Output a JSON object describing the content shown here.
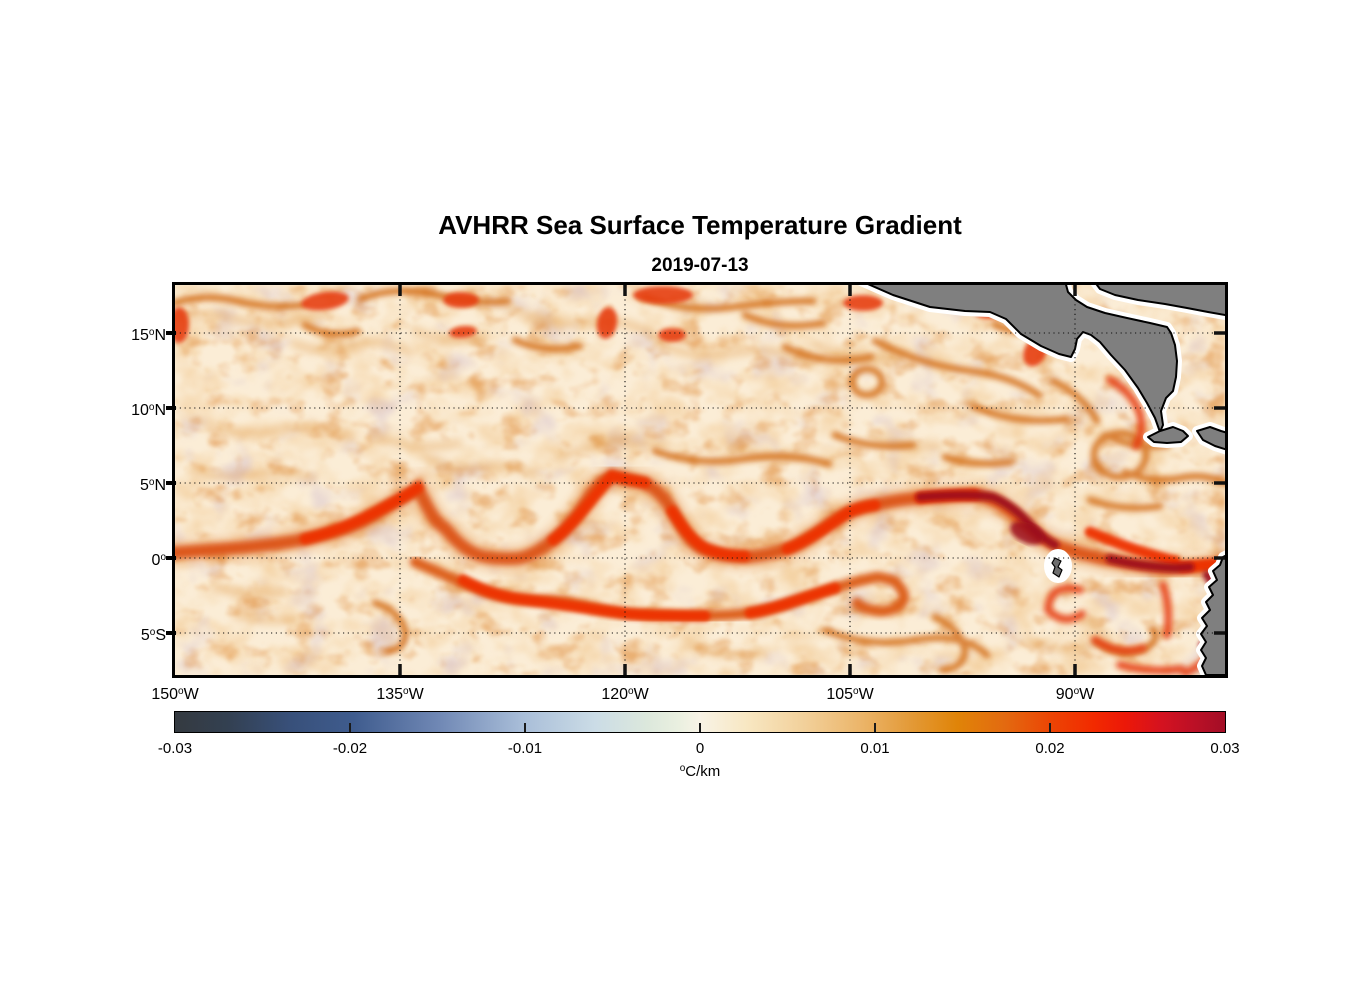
{
  "title": "AVHRR Sea Surface Temperature Gradient",
  "subtitle": "2019-07-13",
  "chart_data": {
    "type": "heatmap",
    "title": "AVHRR Sea Surface Temperature Gradient",
    "date": "2019-07-13",
    "x_axis": {
      "label": "",
      "tick_values_deg_west": [
        150,
        135,
        120,
        105,
        90
      ],
      "gridline_values_deg_west": [
        135,
        120,
        105,
        90
      ],
      "range_deg_west": [
        150,
        80
      ],
      "suffix": "W"
    },
    "y_axis": {
      "label": "",
      "tick_values_deg_north": [
        15,
        10,
        5,
        0,
        -5
      ],
      "range_deg_north": [
        18.2,
        -7.8
      ],
      "suffix_north": "N",
      "suffix_south": "S"
    },
    "grid": "dotted",
    "colorbar": {
      "min": -0.03,
      "max": 0.03,
      "tick_values": [
        -0.03,
        -0.02,
        -0.01,
        0,
        0.01,
        0.02,
        0.03
      ],
      "tick_labels": [
        "-0.03",
        "-0.02",
        "-0.01",
        "0",
        "0.01",
        "0.02",
        "0.03"
      ],
      "unit": "°C/km",
      "unit_parts": {
        "sup": "o",
        "text": "C/km"
      },
      "orientation": "horizontal",
      "stops": [
        {
          "pos": 0.0,
          "color": "#343A40"
        },
        {
          "pos": 0.05,
          "color": "#334051"
        },
        {
          "pos": 0.11,
          "color": "#38507A"
        },
        {
          "pos": 0.17,
          "color": "#3F5C8E"
        },
        {
          "pos": 0.25,
          "color": "#6F87B4"
        },
        {
          "pos": 0.33,
          "color": "#A8BDD8"
        },
        {
          "pos": 0.4,
          "color": "#CBDCE6"
        },
        {
          "pos": 0.45,
          "color": "#DCE8DC"
        },
        {
          "pos": 0.48,
          "color": "#EAF0E0"
        },
        {
          "pos": 0.5,
          "color": "#F8F3E6"
        },
        {
          "pos": 0.545,
          "color": "#F8E7C2"
        },
        {
          "pos": 0.6,
          "color": "#F2D09A"
        },
        {
          "pos": 0.655,
          "color": "#EBB468"
        },
        {
          "pos": 0.7,
          "color": "#E39A38"
        },
        {
          "pos": 0.745,
          "color": "#E08408"
        },
        {
          "pos": 0.79,
          "color": "#E36A10"
        },
        {
          "pos": 0.835,
          "color": "#EC4404"
        },
        {
          "pos": 0.875,
          "color": "#F22A00"
        },
        {
          "pos": 0.905,
          "color": "#EC1808"
        },
        {
          "pos": 0.94,
          "color": "#D41220"
        },
        {
          "pos": 0.97,
          "color": "#BC1026"
        },
        {
          "pos": 1.0,
          "color": "#A30E26"
        }
      ]
    },
    "colors": {
      "ocean_background": "#FBEDD6",
      "land": "#7F7F7F",
      "coastline": "#000000",
      "coast_buffer": "#FFFFFF",
      "front_strong": "#EE3206",
      "front_core_dark": "#9C0E1E",
      "filament_orange": "#D4701C"
    },
    "features": [
      {
        "name": "tropical-instability-wave-front",
        "description": "Bright red meandering SST front with cusps between 5N and 0 across the basin from ~140W to the American coast"
      },
      {
        "name": "southern-secondary-front",
        "description": "Second red front arcing south of the equator between ~122W and ~96W with a recurved hook"
      },
      {
        "name": "equatorial-front-maximum",
        "description": "Dark crimson gradient maxima near 95W-80W around the equator and along the South American coast"
      },
      {
        "name": "mesoscale-filaments",
        "description": "Mottled orange filament and eddy texture over cream background, strongest north of 10N and near the Central American coast"
      },
      {
        "name": "central-america-land",
        "description": "Gray land mass of Mexico / Central America in upper right with white coastal buffer and black coastline"
      },
      {
        "name": "south-america-land",
        "description": "Gray sliver of Ecuador / Peru along the right edge below the equator"
      },
      {
        "name": "galapagos-islands",
        "description": "Small gray island speck with white halo near 91W, 0.5S"
      }
    ]
  },
  "layout_text": {
    "note": "all visible text is title, subtitle, axis tick labels, colorbar labels and unit"
  }
}
